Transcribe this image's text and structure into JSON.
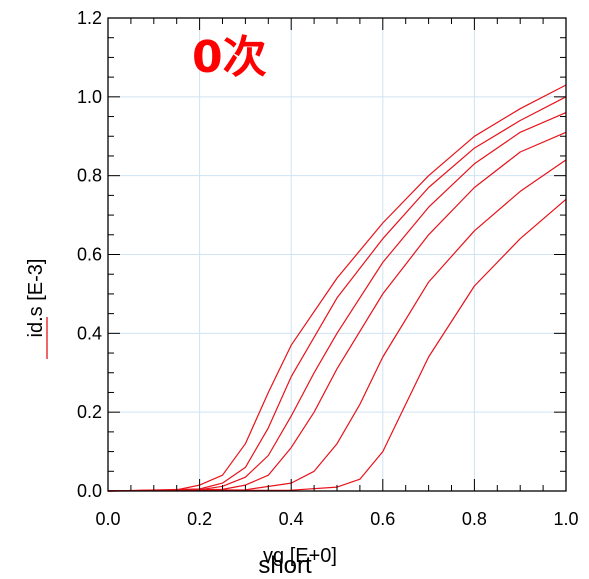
{
  "chart_data": {
    "type": "line",
    "annotation": "0次",
    "annotation_color": "#ff0000",
    "xlabel": "vg  [E+0]",
    "ylabel": "id.s  [E-3]",
    "overlay_label": "short",
    "xlim": [
      0.0,
      1.0
    ],
    "ylim": [
      0.0,
      1.2
    ],
    "xticks": [
      "0.0",
      "0.2",
      "0.4",
      "0.6",
      "0.8",
      "1.0"
    ],
    "yticks": [
      "0.0",
      "0.2",
      "0.4",
      "0.6",
      "0.8",
      "1.0",
      "1.2"
    ],
    "grid": true,
    "line_color": "#e8121a",
    "grid_color": "#cfe3f3",
    "series": [
      {
        "x": [
          0,
          0.15,
          0.2,
          0.25,
          0.3,
          0.35,
          0.4,
          0.5,
          0.6,
          0.7,
          0.8,
          0.9,
          1.0
        ],
        "values": [
          0,
          0.003,
          0.015,
          0.04,
          0.12,
          0.25,
          0.37,
          0.54,
          0.68,
          0.8,
          0.9,
          0.97,
          1.03
        ]
      },
      {
        "x": [
          0,
          0.2,
          0.25,
          0.3,
          0.35,
          0.4,
          0.5,
          0.6,
          0.7,
          0.8,
          0.9,
          1.0
        ],
        "values": [
          0,
          0.005,
          0.02,
          0.06,
          0.16,
          0.29,
          0.49,
          0.64,
          0.77,
          0.87,
          0.94,
          1.0
        ]
      },
      {
        "x": [
          0,
          0.2,
          0.25,
          0.3,
          0.35,
          0.4,
          0.45,
          0.5,
          0.6,
          0.7,
          0.8,
          0.9,
          1.0
        ],
        "values": [
          0,
          0.003,
          0.012,
          0.035,
          0.09,
          0.19,
          0.3,
          0.4,
          0.58,
          0.72,
          0.83,
          0.91,
          0.96
        ]
      },
      {
        "x": [
          0,
          0.25,
          0.3,
          0.35,
          0.4,
          0.45,
          0.5,
          0.6,
          0.7,
          0.8,
          0.9,
          1.0
        ],
        "values": [
          0,
          0.004,
          0.015,
          0.04,
          0.11,
          0.2,
          0.31,
          0.5,
          0.65,
          0.77,
          0.86,
          0.91
        ]
      },
      {
        "x": [
          0,
          0.3,
          0.4,
          0.45,
          0.5,
          0.55,
          0.6,
          0.7,
          0.8,
          0.9,
          1.0
        ],
        "values": [
          0,
          0.003,
          0.02,
          0.05,
          0.12,
          0.22,
          0.34,
          0.53,
          0.66,
          0.76,
          0.84
        ]
      },
      {
        "x": [
          0,
          0.4,
          0.5,
          0.55,
          0.6,
          0.65,
          0.7,
          0.8,
          0.9,
          1.0
        ],
        "values": [
          0,
          0.002,
          0.01,
          0.03,
          0.1,
          0.22,
          0.34,
          0.52,
          0.64,
          0.74
        ]
      }
    ]
  }
}
